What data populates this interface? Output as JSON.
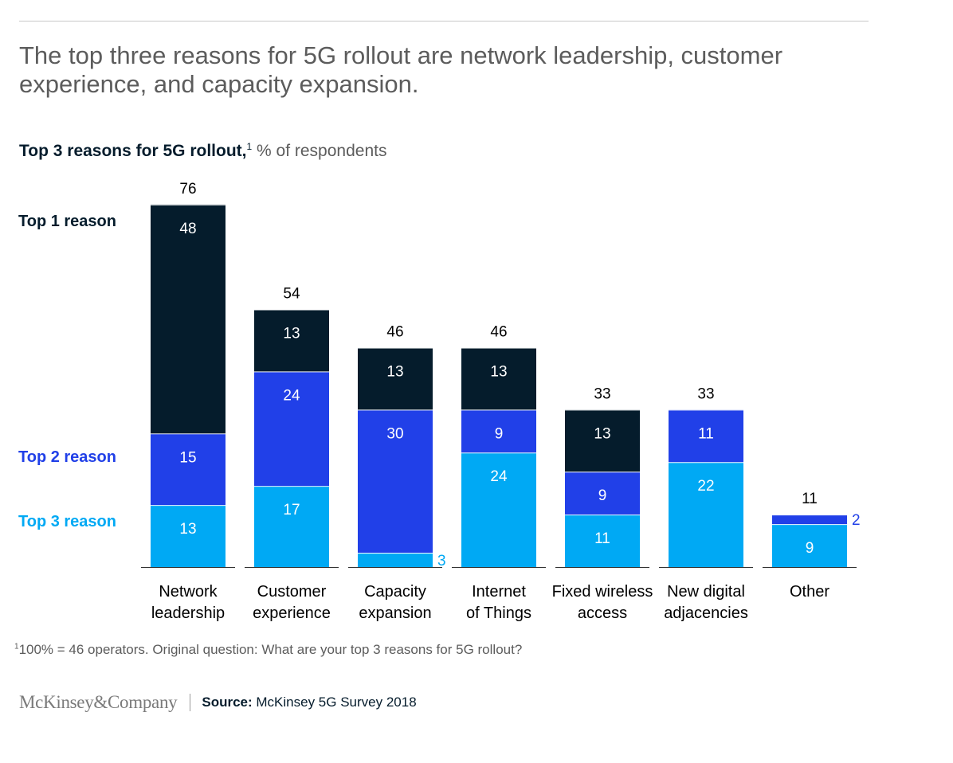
{
  "headline": "The top three reasons for 5G rollout are network leadership, customer experience, and capacity expansion.",
  "subtitle": {
    "bold": "Top 3 reasons for 5G rollout,",
    "footnote_mark": "1",
    "unit": "% of respondents"
  },
  "chart_data": {
    "type": "bar",
    "stacked": true,
    "categories": [
      [
        "Network",
        "leadership"
      ],
      [
        "Customer",
        "experience"
      ],
      [
        "Capacity",
        "expansion"
      ],
      [
        "Internet",
        "of Things"
      ],
      [
        "Fixed wireless",
        "access"
      ],
      [
        "New digital",
        "adjacencies"
      ],
      [
        "Other"
      ]
    ],
    "series": [
      {
        "name": "Top 3 reason",
        "color": "#00a9f4",
        "values": [
          13,
          17,
          3,
          24,
          11,
          22,
          9
        ]
      },
      {
        "name": "Top 2 reason",
        "color": "#2140e8",
        "values": [
          15,
          24,
          30,
          9,
          9,
          11,
          2
        ]
      },
      {
        "name": "Top 1 reason",
        "color": "#051c2c",
        "values": [
          48,
          13,
          13,
          13,
          13,
          0,
          0
        ]
      }
    ],
    "totals": [
      76,
      54,
      46,
      46,
      33,
      33,
      11
    ],
    "ylim": [
      0,
      80
    ],
    "legend_position": "left, beside bars"
  },
  "footnote": {
    "mark": "1",
    "text": "100% = 46 operators. Original question: What are your top 3 reasons for 5G rollout?"
  },
  "footer": {
    "logo": "McKinsey&Company",
    "source_label": "Source:",
    "source_text": "McKinsey 5G Survey 2018"
  }
}
